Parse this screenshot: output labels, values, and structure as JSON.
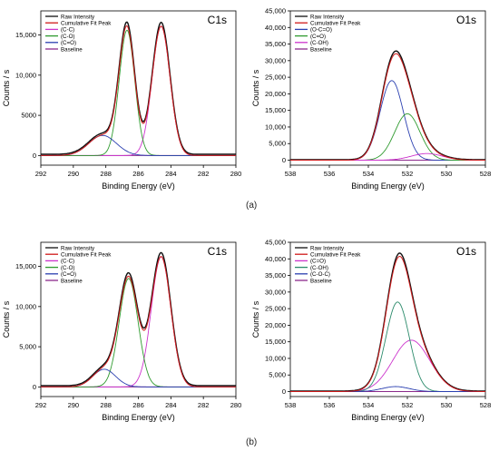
{
  "colors": {
    "raw": "#111111",
    "cumulative": "#d01a1a",
    "baseline": "#8b2a8b",
    "green": "#2e9a2e",
    "blue": "#2a3fb0",
    "magenta": "#cc33cc",
    "teal": "#2a8a6a",
    "axis": "#000000"
  },
  "captions": {
    "a": "(a)",
    "b": "(b)"
  },
  "chart_data": [
    {
      "id": "a-c1s",
      "type": "line",
      "title": "C1s",
      "xlabel": "Binding Energy (eV)",
      "ylabel": "Counts / s",
      "xlim": [
        292,
        280
      ],
      "ylim": [
        -1200,
        18000
      ],
      "xticks": [
        292,
        290,
        288,
        286,
        284,
        282,
        280
      ],
      "xtick_labels": [
        "292",
        "290",
        "288",
        "286",
        "284",
        "282",
        "280"
      ],
      "yticks": [
        0,
        5000,
        10000,
        15000
      ],
      "ytick_labels": [
        "0",
        "5000",
        "10,000",
        "15,000"
      ],
      "legend": [
        "Raw Intensity",
        "Cumulative Fit Peak",
        "(C-C)",
        "(C-O)",
        "(C=O)",
        "Baseline"
      ],
      "legend_position": "top-left",
      "peaks": [
        {
          "label": "(C-C)",
          "center": 284.6,
          "height": 16100,
          "sigma": 0.55,
          "color": "magenta"
        },
        {
          "label": "(C-O)",
          "center": 286.7,
          "height": 15600,
          "sigma": 0.48,
          "color": "green"
        },
        {
          "label": "(C=O)",
          "center": 288.2,
          "height": 2500,
          "sigma": 0.85,
          "color": "blue"
        }
      ],
      "baseline_level": 0
    },
    {
      "id": "a-o1s",
      "type": "line",
      "title": "O1s",
      "xlabel": "Binding Energy (eV)",
      "ylabel": "Counts / s",
      "xlim": [
        538,
        528
      ],
      "ylim": [
        -1500,
        45000
      ],
      "xticks": [
        538,
        536,
        534,
        532,
        530,
        528
      ],
      "xtick_labels": [
        "538",
        "536",
        "534",
        "532",
        "530",
        "528"
      ],
      "yticks": [
        0,
        5000,
        10000,
        15000,
        20000,
        25000,
        30000,
        35000,
        40000,
        45000
      ],
      "ytick_labels": [
        "0",
        "5,000",
        "10,000",
        "15,000",
        "20,000",
        "25,000",
        "30,000",
        "35,000",
        "40,000",
        "45,000"
      ],
      "legend": [
        "Raw Intensity",
        "Cumulative Fit Peak",
        "(O-C=O)",
        "(C=O)",
        "(C-OH)",
        "Baseline"
      ],
      "legend_position": "top-left",
      "peaks": [
        {
          "label": "(O-C=O)",
          "center": 532.8,
          "height": 24000,
          "sigma": 0.6,
          "color": "blue"
        },
        {
          "label": "(C=O)",
          "center": 532.0,
          "height": 14000,
          "sigma": 0.65,
          "color": "green"
        },
        {
          "label": "(C-OH)",
          "center": 531.0,
          "height": 2000,
          "sigma": 0.8,
          "color": "magenta"
        }
      ],
      "baseline_level": 0
    },
    {
      "id": "b-c1s",
      "type": "line",
      "title": "C1s",
      "xlabel": "Binding Energy (eV)",
      "ylabel": "Counts / s",
      "xlim": [
        292,
        280
      ],
      "ylim": [
        -1200,
        18000
      ],
      "xticks": [
        292,
        290,
        288,
        286,
        284,
        282,
        280
      ],
      "xtick_labels": [
        "292",
        "290",
        "288",
        "286",
        "284",
        "282",
        "280"
      ],
      "yticks": [
        0,
        5000,
        10000,
        15000
      ],
      "ytick_labels": [
        "0",
        "5,000",
        "10,000",
        "15,000"
      ],
      "legend": [
        "Raw Intensity",
        "Cumulative Fit Peak",
        "(C-C)",
        "(C-O)",
        "(C=O)",
        "Baseline"
      ],
      "legend_position": "top-left",
      "peaks": [
        {
          "label": "(C-C)",
          "center": 284.6,
          "height": 16200,
          "sigma": 0.6,
          "color": "magenta"
        },
        {
          "label": "(C-O)",
          "center": 286.6,
          "height": 13500,
          "sigma": 0.58,
          "color": "green"
        },
        {
          "label": "(C=O)",
          "center": 288.1,
          "height": 2200,
          "sigma": 0.7,
          "color": "blue"
        }
      ],
      "baseline_level": 0
    },
    {
      "id": "b-o1s",
      "type": "line",
      "title": "O1s",
      "xlabel": "Binding Energy (eV)",
      "ylabel": "Counts / s",
      "xlim": [
        538,
        528
      ],
      "ylim": [
        -1500,
        45000
      ],
      "xticks": [
        538,
        536,
        534,
        532,
        530,
        528
      ],
      "xtick_labels": [
        "538",
        "536",
        "534",
        "532",
        "530",
        "528"
      ],
      "yticks": [
        0,
        5000,
        10000,
        15000,
        20000,
        25000,
        30000,
        35000,
        40000,
        45000
      ],
      "ytick_labels": [
        "0",
        "5,000",
        "10,000",
        "15,000",
        "20,000",
        "25,000",
        "30,000",
        "35,000",
        "40,000",
        "45,000"
      ],
      "legend": [
        "Raw Intensity",
        "Cumulative Fit Peak",
        "(C=O)",
        "(C-OH)",
        "(C-O-C)",
        "Baseline"
      ],
      "legend_position": "top-left",
      "peaks": [
        {
          "label": "(C=O)",
          "center": 531.8,
          "height": 15500,
          "sigma": 0.95,
          "color": "magenta"
        },
        {
          "label": "(C-OH)",
          "center": 532.5,
          "height": 27000,
          "sigma": 0.6,
          "color": "teal"
        },
        {
          "label": "(C-O-C)",
          "center": 532.6,
          "height": 1500,
          "sigma": 0.7,
          "color": "blue"
        }
      ],
      "baseline_level": 0
    }
  ]
}
